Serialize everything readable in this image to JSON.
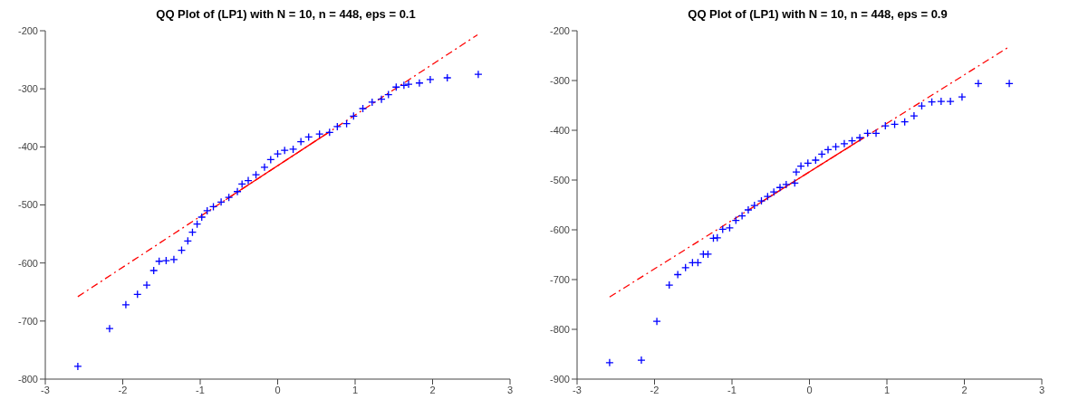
{
  "chart_data": [
    {
      "type": "scatter",
      "title": "QQ Plot of (LP1) with N = 10, n = 448, eps = 0.1",
      "xlim": [
        -3,
        3
      ],
      "xticks": [
        -3,
        -2,
        -1,
        0,
        1,
        2,
        3
      ],
      "ylim": [
        -800,
        -200
      ],
      "yticks": [
        -800,
        -700,
        -600,
        -500,
        -400,
        -300,
        -200
      ],
      "series": [
        {
          "type": "line",
          "color": "#ff0000",
          "line_style": "dashed",
          "marker": "none",
          "x": [
            -2.58,
            2.58
          ],
          "values": [
            -658,
            -207
          ]
        },
        {
          "type": "line",
          "color": "#ff0000",
          "line_style": "solid",
          "marker": "none",
          "x": [
            -0.67,
            0.67
          ],
          "values": [
            -491,
            -374
          ]
        },
        {
          "color": "#0000ff",
          "marker": "cross",
          "x": [
            -2.58,
            -2.17,
            -1.96,
            -1.81,
            -1.69,
            -1.6,
            -1.53,
            -1.44,
            -1.34,
            -1.24,
            -1.16,
            -1.1,
            -1.04,
            -0.98,
            -0.91,
            -0.83,
            -0.73,
            -0.63,
            -0.52,
            -0.46,
            -0.38,
            -0.28,
            -0.17,
            -0.09,
            0,
            0.09,
            0.2,
            0.3,
            0.4,
            0.54,
            0.67,
            0.77,
            0.89,
            0.98,
            1.1,
            1.22,
            1.34,
            1.43,
            1.53,
            1.63,
            1.69,
            1.83,
            1.97,
            2.19,
            2.59
          ],
          "values": [
            -778,
            -713,
            -672,
            -654,
            -638,
            -613,
            -597,
            -596,
            -594,
            -578,
            -562,
            -547,
            -533,
            -521,
            -510,
            -503,
            -495,
            -487,
            -477,
            -464,
            -458,
            -448,
            -435,
            -422,
            -412,
            -406,
            -404,
            -391,
            -383,
            -378,
            -375,
            -365,
            -360,
            -347,
            -334,
            -323,
            -318,
            -310,
            -297,
            -294,
            -292,
            -290,
            -284,
            -281,
            -275
          ]
        }
      ]
    },
    {
      "type": "scatter",
      "title": "QQ Plot of (LP1) with N = 10, n = 448, eps = 0.9",
      "xlim": [
        -3,
        3
      ],
      "xticks": [
        -3,
        -2,
        -1,
        0,
        1,
        2,
        3
      ],
      "ylim": [
        -900,
        -200
      ],
      "yticks": [
        -900,
        -800,
        -700,
        -600,
        -500,
        -400,
        -300,
        -200
      ],
      "series": [
        {
          "type": "line",
          "color": "#ff0000",
          "line_style": "dashed",
          "marker": "none",
          "x": [
            -2.58,
            2.58
          ],
          "values": [
            -735,
            -232
          ]
        },
        {
          "type": "line",
          "color": "#ff0000",
          "line_style": "solid",
          "marker": "none",
          "x": [
            -0.67,
            0.67
          ],
          "values": [
            -549,
            -418
          ]
        },
        {
          "color": "#0000ff",
          "marker": "cross",
          "x": [
            -2.58,
            -2.17,
            -1.97,
            -1.81,
            -1.7,
            -1.6,
            -1.51,
            -1.44,
            -1.37,
            -1.31,
            -1.24,
            -1.19,
            -1.12,
            -1.03,
            -0.95,
            -0.87,
            -0.79,
            -0.71,
            -0.62,
            -0.54,
            -0.46,
            -0.38,
            -0.3,
            -0.19,
            -0.17,
            -0.11,
            -0.02,
            0.08,
            0.16,
            0.24,
            0.34,
            0.45,
            0.55,
            0.65,
            0.75,
            0.86,
            0.98,
            1.1,
            1.23,
            1.35,
            1.45,
            1.58,
            1.7,
            1.82,
            1.97,
            2.18,
            2.58
          ],
          "values": [
            -867,
            -862,
            -784,
            -711,
            -690,
            -676,
            -666,
            -666,
            -649,
            -649,
            -617,
            -616,
            -599,
            -596,
            -581,
            -572,
            -560,
            -551,
            -542,
            -533,
            -524,
            -515,
            -509,
            -506,
            -484,
            -472,
            -466,
            -460,
            -448,
            -439,
            -433,
            -427,
            -421,
            -415,
            -406,
            -406,
            -391,
            -388,
            -383,
            -371,
            -351,
            -343,
            -342,
            -342,
            -333,
            -306,
            -306
          ]
        }
      ]
    }
  ]
}
